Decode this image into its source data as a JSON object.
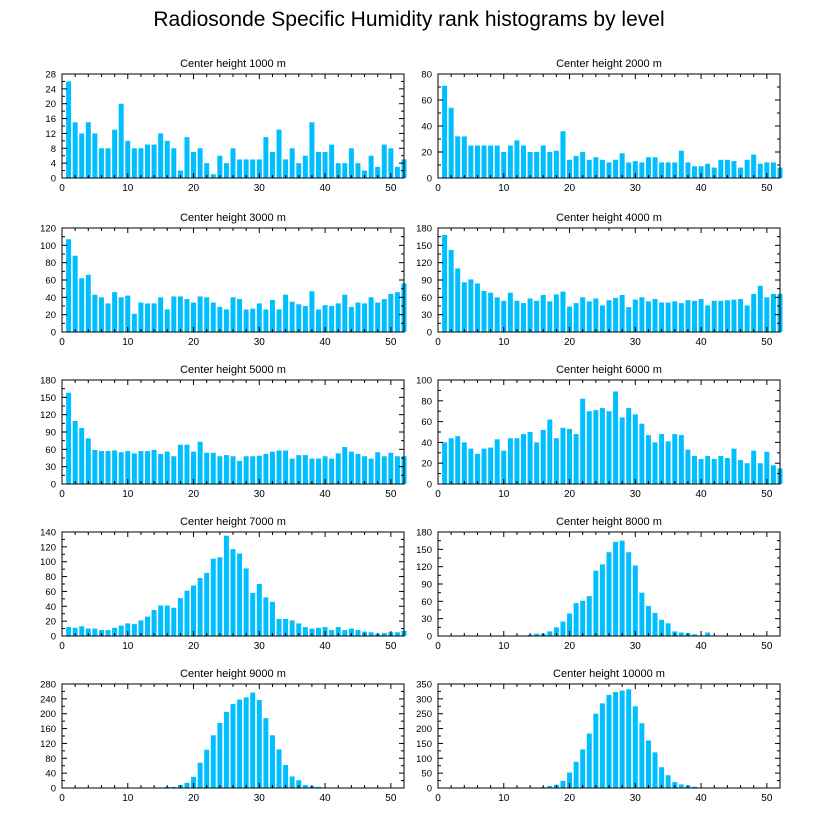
{
  "figure": {
    "title": "Radiosonde Specific Humidity rank histograms by level",
    "bar_color": "#00bfff",
    "axis_color": "#000000"
  },
  "chart_data": [
    {
      "type": "bar",
      "title": "Center height 1000 m",
      "xlim": [
        0,
        52
      ],
      "ylim": [
        0,
        28
      ],
      "xticks": [
        0,
        10,
        20,
        30,
        40,
        50
      ],
      "yticks": [
        0,
        4,
        8,
        12,
        16,
        20,
        24,
        28
      ],
      "values": [
        26,
        15,
        12,
        15,
        12,
        8,
        8,
        13,
        20,
        10,
        8,
        8,
        9,
        9,
        12,
        10,
        8,
        2,
        11,
        7,
        8,
        4,
        1,
        6,
        4,
        8,
        5,
        5,
        5,
        5,
        11,
        7,
        13,
        5,
        8,
        4,
        6,
        15,
        7,
        7,
        9,
        4,
        4,
        8,
        4,
        2,
        6,
        3,
        9,
        8,
        3,
        5
      ]
    },
    {
      "type": "bar",
      "title": "Center height 2000 m",
      "xlim": [
        0,
        52
      ],
      "ylim": [
        0,
        80
      ],
      "xticks": [
        0,
        10,
        20,
        30,
        40,
        50
      ],
      "yticks": [
        0,
        20,
        40,
        60,
        80
      ],
      "values": [
        71,
        54,
        32,
        32,
        25,
        25,
        25,
        25,
        25,
        20,
        25,
        29,
        25,
        20,
        20,
        25,
        20,
        21,
        36,
        14,
        17,
        20,
        14,
        16,
        14,
        12,
        14,
        19,
        12,
        13,
        12,
        16,
        16,
        12,
        12,
        12,
        21,
        12,
        9,
        9,
        11,
        8,
        14,
        14,
        13,
        8,
        14,
        18,
        11,
        12,
        12,
        8
      ]
    },
    {
      "type": "bar",
      "title": "Center height 3000 m",
      "xlim": [
        0,
        52
      ],
      "ylim": [
        0,
        120
      ],
      "xticks": [
        0,
        10,
        20,
        30,
        40,
        50
      ],
      "yticks": [
        0,
        20,
        40,
        60,
        80,
        100,
        120
      ],
      "values": [
        107,
        88,
        62,
        66,
        43,
        40,
        33,
        46,
        40,
        42,
        21,
        34,
        33,
        33,
        40,
        26,
        41,
        41,
        38,
        34,
        41,
        40,
        34,
        29,
        26,
        40,
        38,
        26,
        27,
        33,
        26,
        37,
        26,
        43,
        35,
        32,
        30,
        47,
        26,
        31,
        30,
        33,
        43,
        29,
        34,
        33,
        40,
        34,
        38,
        44,
        46,
        56
      ]
    },
    {
      "type": "bar",
      "title": "Center height 4000 m",
      "xlim": [
        0,
        52
      ],
      "ylim": [
        0,
        180
      ],
      "xticks": [
        0,
        10,
        20,
        30,
        40,
        50
      ],
      "yticks": [
        0,
        30,
        60,
        90,
        120,
        150,
        180
      ],
      "values": [
        168,
        142,
        110,
        86,
        91,
        84,
        71,
        68,
        60,
        54,
        68,
        54,
        50,
        58,
        54,
        64,
        53,
        65,
        70,
        44,
        50,
        60,
        53,
        58,
        46,
        55,
        59,
        64,
        43,
        56,
        60,
        53,
        57,
        51,
        51,
        53,
        50,
        55,
        54,
        57,
        46,
        54,
        54,
        55,
        56,
        57,
        46,
        66,
        80,
        60,
        66,
        66
      ]
    },
    {
      "type": "bar",
      "title": "Center height 5000 m",
      "xlim": [
        0,
        52
      ],
      "ylim": [
        0,
        180
      ],
      "xticks": [
        0,
        10,
        20,
        30,
        40,
        50
      ],
      "yticks": [
        0,
        30,
        60,
        90,
        120,
        150,
        180
      ],
      "values": [
        158,
        109,
        97,
        79,
        59,
        57,
        57,
        58,
        55,
        57,
        53,
        57,
        57,
        59,
        52,
        56,
        48,
        68,
        68,
        56,
        73,
        54,
        54,
        48,
        50,
        48,
        40,
        48,
        48,
        49,
        52,
        56,
        58,
        58,
        44,
        50,
        50,
        44,
        44,
        48,
        44,
        53,
        64,
        56,
        52,
        48,
        44,
        55,
        48,
        54,
        48,
        48
      ]
    },
    {
      "type": "bar",
      "title": "Center height 6000 m",
      "xlim": [
        0,
        52
      ],
      "ylim": [
        0,
        100
      ],
      "xticks": [
        0,
        10,
        20,
        30,
        40,
        50
      ],
      "yticks": [
        0,
        20,
        40,
        60,
        80,
        100
      ],
      "values": [
        40,
        44,
        46,
        40,
        34,
        29,
        34,
        35,
        43,
        32,
        44,
        44,
        48,
        50,
        40,
        52,
        62,
        44,
        54,
        53,
        48,
        82,
        70,
        71,
        73,
        70,
        89,
        64,
        73,
        67,
        58,
        47,
        40,
        48,
        41,
        48,
        47,
        33,
        27,
        24,
        27,
        24,
        27,
        25,
        34,
        23,
        20,
        32,
        20,
        31,
        18,
        15
      ]
    },
    {
      "type": "bar",
      "title": "Center height 7000 m",
      "xlim": [
        0,
        52
      ],
      "ylim": [
        0,
        140
      ],
      "xticks": [
        0,
        10,
        20,
        30,
        40,
        50
      ],
      "yticks": [
        0,
        20,
        40,
        60,
        80,
        100,
        120,
        140
      ],
      "values": [
        12,
        11,
        13,
        10,
        10,
        8,
        8,
        11,
        14,
        17,
        16,
        21,
        26,
        35,
        41,
        41,
        38,
        51,
        61,
        68,
        78,
        85,
        104,
        106,
        135,
        117,
        111,
        91,
        58,
        70,
        52,
        46,
        23,
        23,
        21,
        17,
        12,
        10,
        11,
        12,
        8,
        12,
        8,
        10,
        8,
        6,
        5,
        3,
        4,
        5,
        5,
        7
      ]
    },
    {
      "type": "bar",
      "title": "Center height 8000 m",
      "xlim": [
        0,
        52
      ],
      "ylim": [
        0,
        180
      ],
      "xticks": [
        0,
        10,
        20,
        30,
        40,
        50
      ],
      "yticks": [
        0,
        30,
        60,
        90,
        120,
        150,
        180
      ],
      "values": [
        0,
        0,
        0,
        0,
        0,
        0,
        0,
        0,
        0,
        0,
        0,
        0,
        0,
        2,
        4,
        4,
        8,
        15,
        25,
        39,
        57,
        61,
        69,
        113,
        124,
        145,
        163,
        165,
        145,
        122,
        75,
        52,
        40,
        28,
        22,
        8,
        6,
        5,
        3,
        1,
        6,
        1,
        0,
        0,
        1,
        0,
        0,
        0,
        0,
        0,
        0,
        0
      ]
    },
    {
      "type": "bar",
      "title": "Center height 9000 m",
      "xlim": [
        0,
        52
      ],
      "ylim": [
        0,
        280
      ],
      "xticks": [
        0,
        10,
        20,
        30,
        40,
        50
      ],
      "yticks": [
        0,
        40,
        80,
        120,
        160,
        200,
        240,
        280
      ],
      "values": [
        0,
        0,
        0,
        0,
        0,
        0,
        0,
        0,
        0,
        0,
        0,
        0,
        0,
        0,
        0,
        3,
        3,
        8,
        14,
        30,
        68,
        103,
        142,
        175,
        205,
        226,
        238,
        244,
        257,
        237,
        188,
        142,
        104,
        62,
        31,
        21,
        8,
        5,
        3,
        1,
        1,
        0,
        0,
        0,
        0,
        0,
        0,
        0,
        0,
        0,
        0,
        0
      ]
    },
    {
      "type": "bar",
      "title": "Center height 10000 m",
      "xlim": [
        0,
        52
      ],
      "ylim": [
        0,
        350
      ],
      "xticks": [
        0,
        10,
        20,
        30,
        40,
        50
      ],
      "yticks": [
        0,
        50,
        100,
        150,
        200,
        250,
        300,
        350
      ],
      "values": [
        0,
        0,
        0,
        0,
        0,
        0,
        0,
        0,
        0,
        0,
        0,
        0,
        0,
        0,
        0,
        3,
        7,
        11,
        24,
        52,
        88,
        130,
        183,
        250,
        285,
        313,
        323,
        328,
        332,
        275,
        218,
        160,
        120,
        70,
        43,
        20,
        12,
        8,
        4,
        1,
        0,
        0,
        0,
        0,
        0,
        0,
        0,
        0,
        0,
        0,
        0,
        0
      ]
    }
  ]
}
